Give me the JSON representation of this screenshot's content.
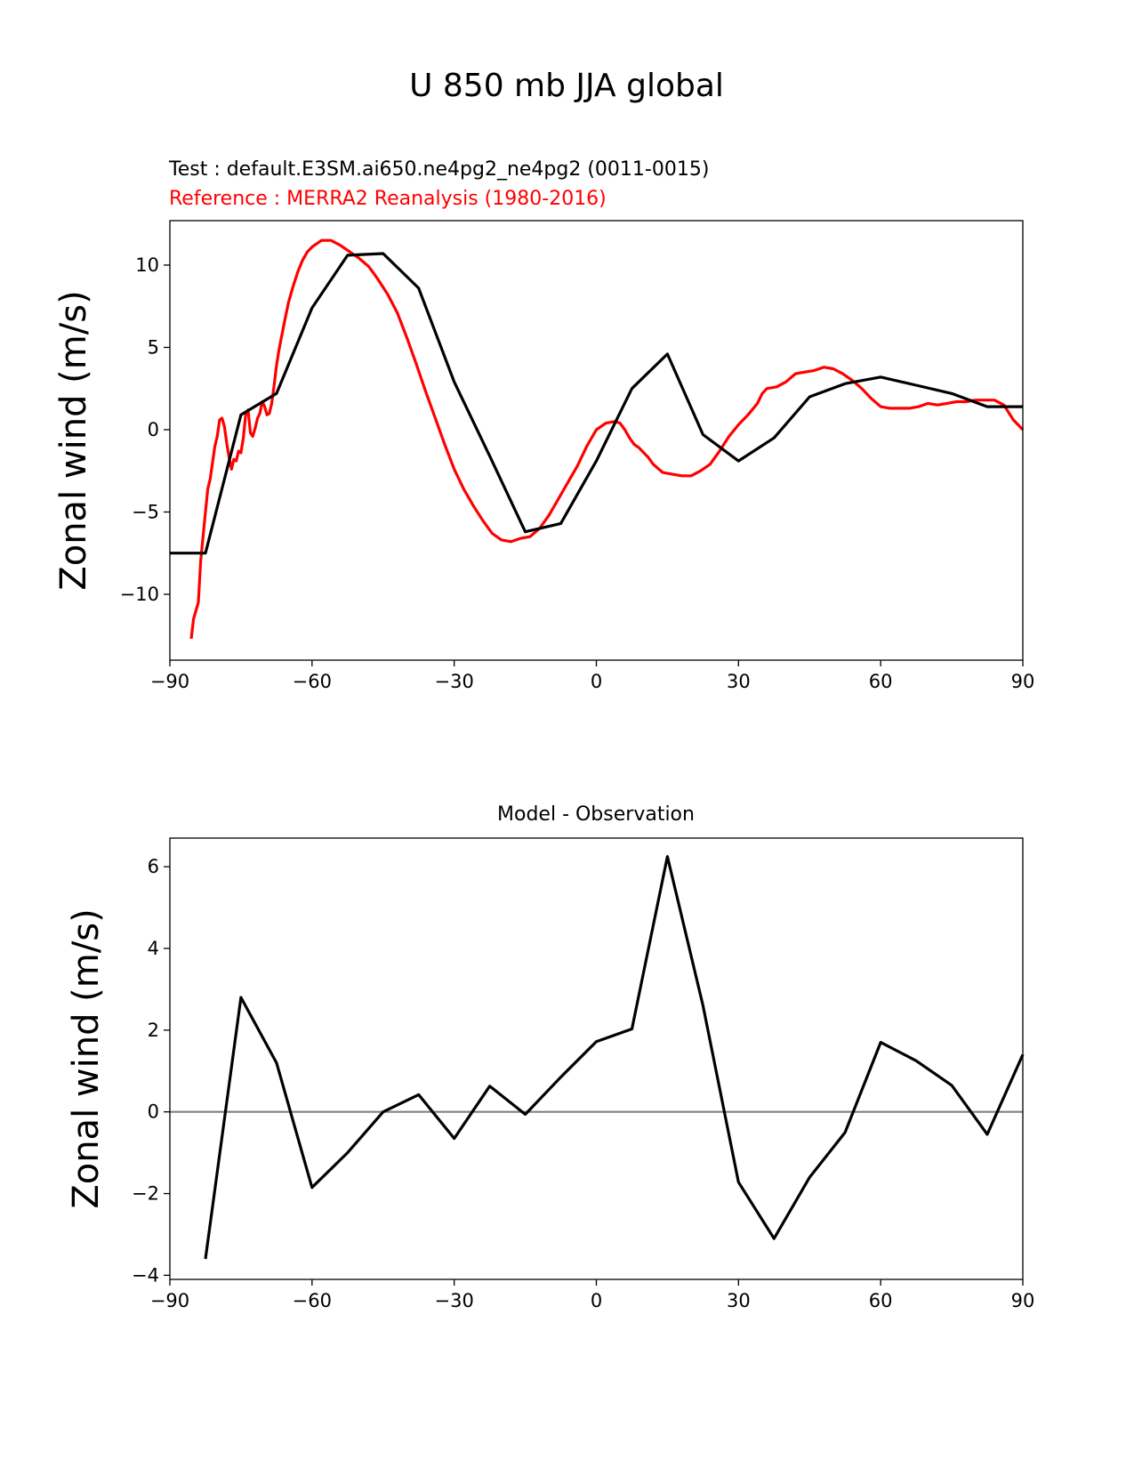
{
  "figure_title": "U 850 mb JJA global",
  "colors": {
    "test": "#000000",
    "reference": "#ff0000",
    "zero_line": "#808080",
    "axes": "#000000"
  },
  "chart_data": [
    {
      "type": "line",
      "test_label": "Test : default.E3SM.ai650.ne4pg2_ne4pg2 (0011-0015)",
      "reference_label": "Reference : MERRA2 Reanalysis (1980-2016)",
      "xlabel": "",
      "ylabel": "Zonal wind (m/s)",
      "xlim": [
        -90,
        90
      ],
      "ylim": [
        -14,
        12.7
      ],
      "xticks": [
        -90,
        -60,
        -30,
        0,
        30,
        60,
        90
      ],
      "xtick_labels": [
        "−90",
        "−60",
        "−30",
        "0",
        "30",
        "60",
        "90"
      ],
      "yticks": [
        -10,
        -5,
        0,
        5,
        10
      ],
      "ytick_labels": [
        "−10",
        "−5",
        "0",
        "5",
        "10"
      ],
      "series": [
        {
          "name": "Test",
          "color": "#000000",
          "x": [
            -90,
            -82.5,
            -75,
            -67.5,
            -60,
            -52.5,
            -45,
            -37.5,
            -30,
            -22.5,
            -15,
            -7.5,
            0,
            7.5,
            15,
            22.5,
            30,
            37.5,
            45,
            52.5,
            60,
            67.5,
            75,
            82.5,
            90
          ],
          "y": [
            -7.5,
            -7.5,
            0.9,
            2.2,
            7.4,
            10.6,
            10.7,
            8.6,
            2.9,
            -1.6,
            -6.2,
            -5.7,
            -1.9,
            2.5,
            4.6,
            -0.3,
            -1.9,
            -0.5,
            2.0,
            2.8,
            3.2,
            2.7,
            2.2,
            1.4,
            1.4
          ]
        },
        {
          "name": "Reference",
          "color": "#ff0000",
          "x": [
            -85.5,
            -85,
            -84,
            -83.5,
            -82.5,
            -82,
            -81.5,
            -80.5,
            -80,
            -79.5,
            -79,
            -78.5,
            -78,
            -77.5,
            -77,
            -76.5,
            -76,
            -75.5,
            -75,
            -74.5,
            -74,
            -73.5,
            -73,
            -72.5,
            -72,
            -71.5,
            -71,
            -70.5,
            -70,
            -69.5,
            -69,
            -68.5,
            -68,
            -67.5,
            -67,
            -66,
            -65,
            -64,
            -63,
            -62,
            -61,
            -60,
            -58,
            -56,
            -54,
            -52,
            -50,
            -48,
            -46,
            -44,
            -42,
            -40,
            -38,
            -36,
            -34,
            -32,
            -30,
            -28,
            -26,
            -24,
            -22,
            -20,
            -18,
            -16,
            -14,
            -12,
            -10,
            -8,
            -6,
            -4,
            -2,
            0,
            2,
            4,
            5,
            6,
            7,
            8,
            9,
            10,
            11,
            12,
            14,
            16,
            18,
            20,
            22,
            24,
            26,
            28,
            30,
            32,
            34,
            35,
            36,
            38,
            40,
            42,
            44,
            46,
            48,
            50,
            52,
            54,
            56,
            58,
            60,
            62,
            64,
            66,
            68,
            70,
            72,
            74,
            76,
            78,
            80,
            82,
            84,
            86,
            88,
            90
          ],
          "y": [
            -12.7,
            -11.5,
            -10.5,
            -8,
            -5,
            -3.6,
            -3.0,
            -1.0,
            -0.4,
            0.6,
            0.7,
            0.2,
            -0.8,
            -1.7,
            -2.4,
            -1.8,
            -1.9,
            -1.3,
            -1.4,
            -0.5,
            0.9,
            1.2,
            -0.2,
            -0.4,
            0.1,
            0.7,
            1.0,
            1.7,
            1.4,
            0.9,
            1.0,
            1.6,
            2.7,
            3.9,
            4.8,
            6.3,
            7.7,
            8.7,
            9.6,
            10.3,
            10.8,
            11.1,
            11.5,
            11.5,
            11.2,
            10.8,
            10.4,
            9.9,
            9.1,
            8.2,
            7.1,
            5.6,
            4.0,
            2.3,
            0.7,
            -0.9,
            -2.4,
            -3.6,
            -4.6,
            -5.5,
            -6.3,
            -6.7,
            -6.8,
            -6.6,
            -6.5,
            -6.0,
            -5.2,
            -4.2,
            -3.2,
            -2.2,
            -1.0,
            0.0,
            0.4,
            0.5,
            0.4,
            0.0,
            -0.5,
            -0.9,
            -1.1,
            -1.4,
            -1.7,
            -2.1,
            -2.6,
            -2.7,
            -2.8,
            -2.8,
            -2.5,
            -2.1,
            -1.3,
            -0.4,
            0.3,
            0.9,
            1.6,
            2.2,
            2.5,
            2.6,
            2.9,
            3.4,
            3.5,
            3.6,
            3.8,
            3.7,
            3.4,
            3.0,
            2.5,
            1.9,
            1.4,
            1.3,
            1.3,
            1.3,
            1.4,
            1.6,
            1.5,
            1.6,
            1.7,
            1.7,
            1.8,
            1.8,
            1.8,
            1.5,
            0.6,
            0.0
          ]
        }
      ]
    },
    {
      "type": "line",
      "title": "Model - Observation",
      "xlabel": "",
      "ylabel": "Zonal wind (m/s)",
      "xlim": [
        -90,
        90
      ],
      "ylim": [
        -4.1,
        6.7
      ],
      "xticks": [
        -90,
        -60,
        -30,
        0,
        30,
        60,
        90
      ],
      "xtick_labels": [
        "−90",
        "−60",
        "−30",
        "0",
        "30",
        "60",
        "90"
      ],
      "yticks": [
        -4,
        -2,
        0,
        2,
        4,
        6
      ],
      "ytick_labels": [
        "−4",
        "−2",
        "0",
        "2",
        "4",
        "6"
      ],
      "zero_line": 0,
      "series": [
        {
          "name": "Model - Observation",
          "color": "#000000",
          "x": [
            -82.5,
            -75,
            -67.5,
            -60,
            -52.5,
            -45,
            -37.5,
            -30,
            -22.5,
            -15,
            -7.5,
            0,
            7.5,
            15,
            22.5,
            30,
            37.5,
            45,
            52.5,
            60,
            67.5,
            75,
            82.5,
            90
          ],
          "y": [
            -3.6,
            2.8,
            1.2,
            -1.85,
            -1.0,
            0.0,
            0.42,
            -0.65,
            0.63,
            -0.06,
            0.85,
            1.72,
            2.03,
            6.25,
            2.6,
            -1.72,
            -3.1,
            -1.6,
            -0.5,
            1.7,
            1.25,
            0.65,
            -0.55,
            1.4
          ]
        }
      ]
    }
  ]
}
